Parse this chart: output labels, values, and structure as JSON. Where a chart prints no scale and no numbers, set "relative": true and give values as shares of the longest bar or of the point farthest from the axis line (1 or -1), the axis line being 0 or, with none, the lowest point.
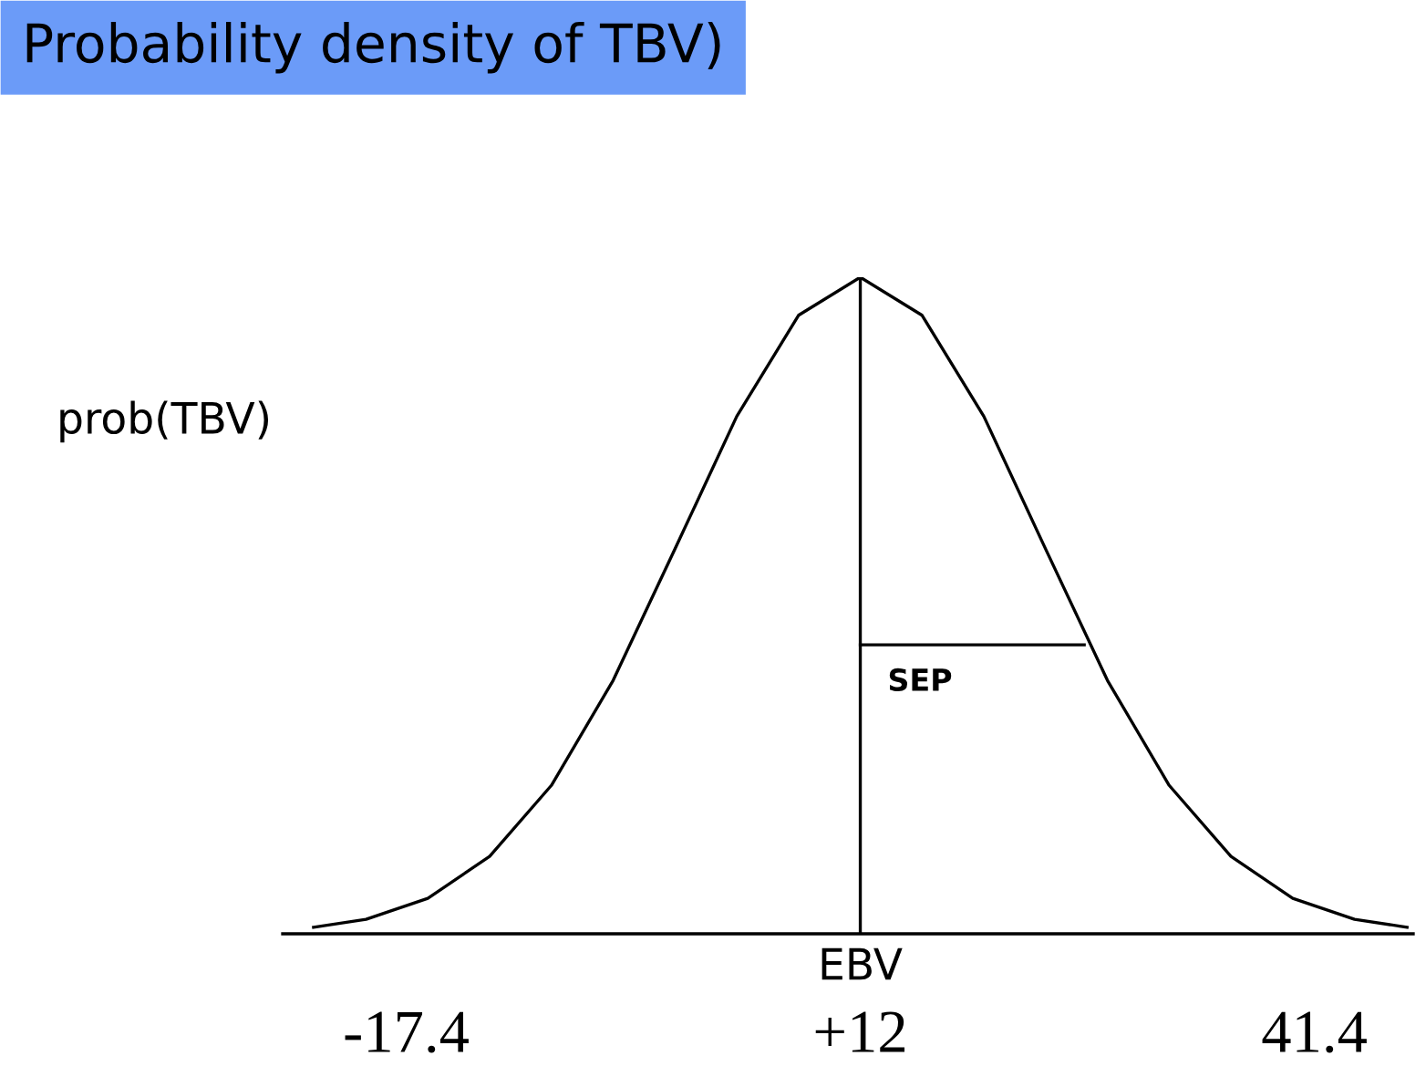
{
  "chart_data": {
    "type": "line",
    "title": "Probability density of TBV)",
    "xlabel": "EBV",
    "ylabel": "prob(TBV)",
    "relative": true,
    "x": [
      -23.4,
      -20,
      -16,
      -12,
      -8,
      -4,
      0,
      4,
      8,
      12,
      16,
      20,
      24,
      28,
      32,
      36,
      40,
      44,
      47.4
    ],
    "series": [
      {
        "color": "#000000",
        "values": [
          0.01,
          0.022,
          0.054,
          0.118,
          0.226,
          0.386,
          0.586,
          0.788,
          0.942,
          1,
          0.942,
          0.788,
          0.586,
          0.386,
          0.226,
          0.118,
          0.054,
          0.022,
          0.01
        ]
      },
      {
        "color": "#000000",
        "x": [
          12,
          26.5
        ],
        "values": [
          0.44,
          0.44
        ]
      }
    ],
    "ref_lines": [
      {
        "axis": "x",
        "value": 12,
        "color": "#000000"
      }
    ],
    "annotations": [
      "SEP"
    ],
    "xlim": [
      -25.4,
      47.8
    ],
    "xticks": [
      -17.4,
      {
        "value": 12,
        "label": "+12"
      },
      41.4
    ],
    "tick_labels": "x",
    "grid": false,
    "legend": false,
    "marker": "none",
    "line_style": "solid"
  }
}
